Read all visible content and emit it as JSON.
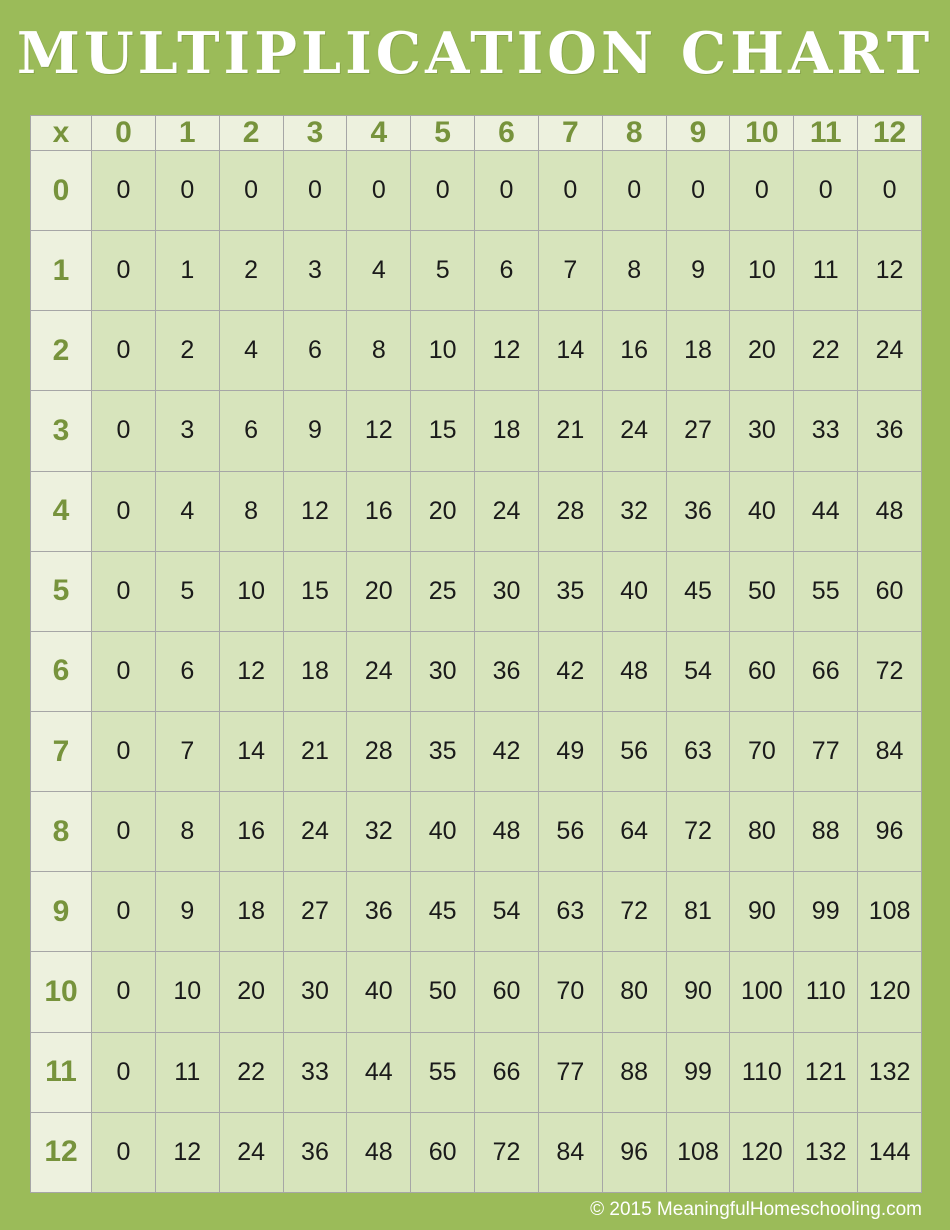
{
  "title": "MULTIPLICATION CHART",
  "footer": {
    "copyright": "© 2015 MeaningfulHomeschooling.com"
  },
  "colors": {
    "page_background": "#9BBB59",
    "header_cell_background": "#EDF1DE",
    "data_cell_background": "#D7E4BC",
    "header_text": "#77933C",
    "data_text": "#1A1A1A",
    "grid_line": "#A6A6A6",
    "title_text": "#FFFFFF",
    "copyright_text": "#FFFFFF"
  },
  "table": {
    "corner_label": "x",
    "column_headers": [
      "0",
      "1",
      "2",
      "3",
      "4",
      "5",
      "6",
      "7",
      "8",
      "9",
      "10",
      "11",
      "12"
    ],
    "rows": [
      {
        "header": "0",
        "values": [
          0,
          0,
          0,
          0,
          0,
          0,
          0,
          0,
          0,
          0,
          0,
          0,
          0
        ]
      },
      {
        "header": "1",
        "values": [
          0,
          1,
          2,
          3,
          4,
          5,
          6,
          7,
          8,
          9,
          10,
          11,
          12
        ]
      },
      {
        "header": "2",
        "values": [
          0,
          2,
          4,
          6,
          8,
          10,
          12,
          14,
          16,
          18,
          20,
          22,
          24
        ]
      },
      {
        "header": "3",
        "values": [
          0,
          3,
          6,
          9,
          12,
          15,
          18,
          21,
          24,
          27,
          30,
          33,
          36
        ]
      },
      {
        "header": "4",
        "values": [
          0,
          4,
          8,
          12,
          16,
          20,
          24,
          28,
          32,
          36,
          40,
          44,
          48
        ]
      },
      {
        "header": "5",
        "values": [
          0,
          5,
          10,
          15,
          20,
          25,
          30,
          35,
          40,
          45,
          50,
          55,
          60
        ]
      },
      {
        "header": "6",
        "values": [
          0,
          6,
          12,
          18,
          24,
          30,
          36,
          42,
          48,
          54,
          60,
          66,
          72
        ]
      },
      {
        "header": "7",
        "values": [
          0,
          7,
          14,
          21,
          28,
          35,
          42,
          49,
          56,
          63,
          70,
          77,
          84
        ]
      },
      {
        "header": "8",
        "values": [
          0,
          8,
          16,
          24,
          32,
          40,
          48,
          56,
          64,
          72,
          80,
          88,
          96
        ]
      },
      {
        "header": "9",
        "values": [
          0,
          9,
          18,
          27,
          36,
          45,
          54,
          63,
          72,
          81,
          90,
          99,
          108
        ]
      },
      {
        "header": "10",
        "values": [
          0,
          10,
          20,
          30,
          40,
          50,
          60,
          70,
          80,
          90,
          100,
          110,
          120
        ]
      },
      {
        "header": "11",
        "values": [
          0,
          11,
          22,
          33,
          44,
          55,
          66,
          77,
          88,
          99,
          110,
          121,
          132
        ]
      },
      {
        "header": "12",
        "values": [
          0,
          12,
          24,
          36,
          48,
          60,
          72,
          84,
          96,
          108,
          120,
          132,
          144
        ]
      }
    ]
  }
}
